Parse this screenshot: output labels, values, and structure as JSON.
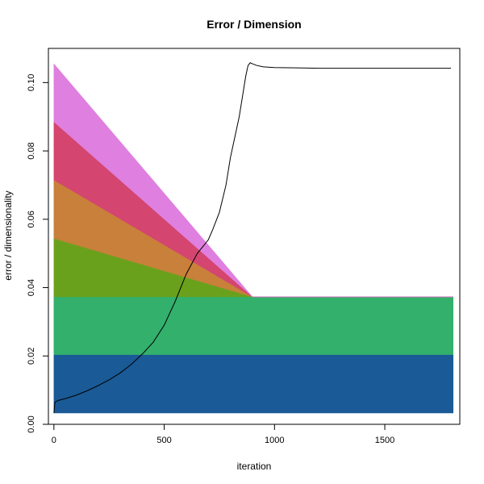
{
  "chart_data": {
    "type": "area",
    "title": "Error / Dimension",
    "xlabel": "iteration",
    "ylabel": "error / dimensionality",
    "xlim": [
      -25,
      1840
    ],
    "ylim": [
      0,
      0.11
    ],
    "xticks": [
      0,
      500,
      1000,
      1500
    ],
    "yticks": [
      0.0,
      0.02,
      0.04,
      0.06,
      0.08,
      0.1
    ],
    "ytick_labels": [
      "0.00",
      "0.02",
      "0.04",
      "0.06",
      "0.08",
      "0.10"
    ],
    "grid": false,
    "legend": "none",
    "bands": [
      {
        "color": "#1a5a96",
        "x": [
          0,
          1810
        ],
        "lower": [
          0.0033,
          0.0033
        ],
        "upper": [
          0.0204,
          0.0204
        ]
      },
      {
        "color": "#33b06c",
        "x": [
          0,
          1810
        ],
        "lower": [
          0.0204,
          0.0204
        ],
        "upper": [
          0.0373,
          0.0373
        ]
      },
      {
        "color": "#6aa11c",
        "x": [
          0,
          900,
          1810
        ],
        "lower": [
          0.0373,
          0.0373,
          0.0373
        ],
        "upper": [
          0.0544,
          0.0373,
          0.0373
        ]
      },
      {
        "color": "#c8803a",
        "x": [
          0,
          900,
          1810
        ],
        "lower": [
          0.0544,
          0.0373,
          0.0373
        ],
        "upper": [
          0.0715,
          0.0373,
          0.0373
        ]
      },
      {
        "color": "#d4456f",
        "x": [
          0,
          900,
          1810
        ],
        "lower": [
          0.0715,
          0.0373,
          0.0373
        ],
        "upper": [
          0.0885,
          0.0373,
          0.0373
        ]
      },
      {
        "color": "#df7fdf",
        "x": [
          0,
          900,
          1810
        ],
        "lower": [
          0.0885,
          0.0373,
          0.0373
        ],
        "upper": [
          0.1055,
          0.0373,
          0.0373
        ]
      }
    ],
    "line": {
      "color": "#000000",
      "x": [
        0,
        5,
        20,
        50,
        100,
        150,
        200,
        250,
        300,
        350,
        400,
        450,
        500,
        550,
        600,
        650,
        700,
        720,
        750,
        780,
        800,
        820,
        840,
        860,
        870,
        880,
        890,
        900,
        920,
        950,
        1000,
        1100,
        1200,
        1400,
        1600,
        1800
      ],
      "y": [
        0.0033,
        0.0065,
        0.007,
        0.0075,
        0.0085,
        0.0098,
        0.0113,
        0.013,
        0.015,
        0.0175,
        0.0205,
        0.024,
        0.029,
        0.036,
        0.044,
        0.05,
        0.054,
        0.057,
        0.062,
        0.07,
        0.078,
        0.084,
        0.09,
        0.098,
        0.102,
        0.105,
        0.1058,
        0.1055,
        0.105,
        0.1046,
        0.1044,
        0.1043,
        0.1042,
        0.1042,
        0.1042,
        0.1042
      ]
    }
  }
}
